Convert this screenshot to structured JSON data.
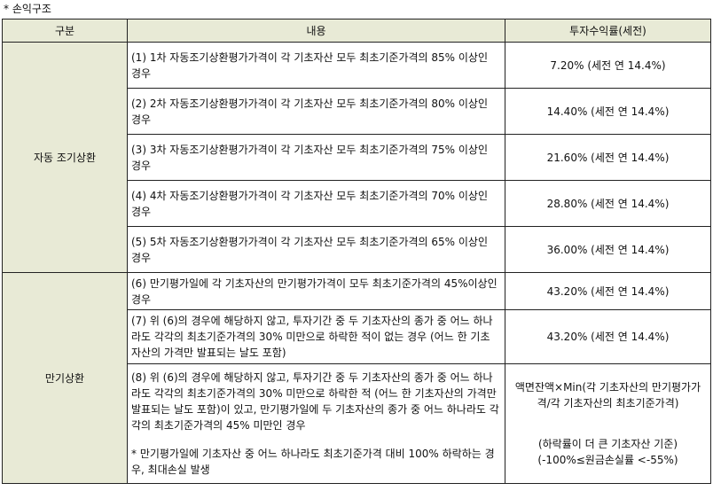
{
  "heading": "* 손익구조",
  "table": {
    "headers": [
      "구분",
      "내용",
      "투자수익률(세전)"
    ],
    "early": {
      "category": "자동 조기상환",
      "rows": [
        {
          "desc": "(1) 1차 자동조기상환평가가격이 각 기초자산 모두 최초기준가격의 85% 이상인 경우",
          "ret": "7.20% (세전 연 14.4%)"
        },
        {
          "desc": "(2) 2차 자동조기상환평가가격이 각 기초자산 모두 최초기준가격의 80% 이상인 경우",
          "ret": "14.40% (세전 연 14.4%)"
        },
        {
          "desc": "(3) 3차 자동조기상환평가가격이 각 기초자산 모두 최초기준가격의 75% 이상인 경우",
          "ret": "21.60% (세전 연 14.4%)"
        },
        {
          "desc": "(4) 4차 자동조기상환평가가격이 각 기초자산 모두 최초기준가격의 70% 이상인 경우",
          "ret": "28.80% (세전 연 14.4%)"
        },
        {
          "desc": "(5) 5차 자동조기상환평가가격이 각 기초자산 모두 최초기준가격의 65% 이상인 경우",
          "ret": "36.00% (세전 연 14.4%)"
        }
      ]
    },
    "maturity": {
      "category": "만기상환",
      "rows": [
        {
          "desc": "(6) 만기평가일에 각 기초자산의 만기평가가격이 모두 최초기준가격의 45%이상인 경우",
          "ret": "43.20% (세전 연 14.4%)"
        },
        {
          "desc": "(7) 위 (6)의 경우에 해당하지 않고, 투자기간 중 두 기초자산의 종가 중 어느 하나라도 각각의 최초기준가격의 30% 미만으로 하락한 적이 없는 경우 (어느 한 기초자산의 가격만 발표되는 날도 포함)",
          "ret": "43.20% (세전 연 14.4%)"
        }
      ],
      "last": {
        "desc": "(8) 위 (6)의 경우에 해당하지 않고, 투자기간 중 두 기초자산의 종가 중 어느 하나라도 각각의 최초기준가격의 30% 미만으로 하락한 적 (어느 한 기초자산의 가격만 발표되는 날도 포함)이 있고, 만기평가일에 두 기초자산의 종가 중 어느 하나라도 각각의 최초기준가격의 45% 미만인 경우",
        "note": "* 만기평가일에 기초자산 중 어느 하나라도 최초기준가격 대비 100% 하락하는 경우, 최대손실 발생",
        "ret_formula": "액면잔액×Min(각 기초자산의 만기평가가격/각 기초자산의 최초기준가격)",
        "ret_basis": "(하락률이 더 큰 기초자산 기준)",
        "ret_range": "(-100%≤원금손실률 <-55%)"
      }
    }
  }
}
